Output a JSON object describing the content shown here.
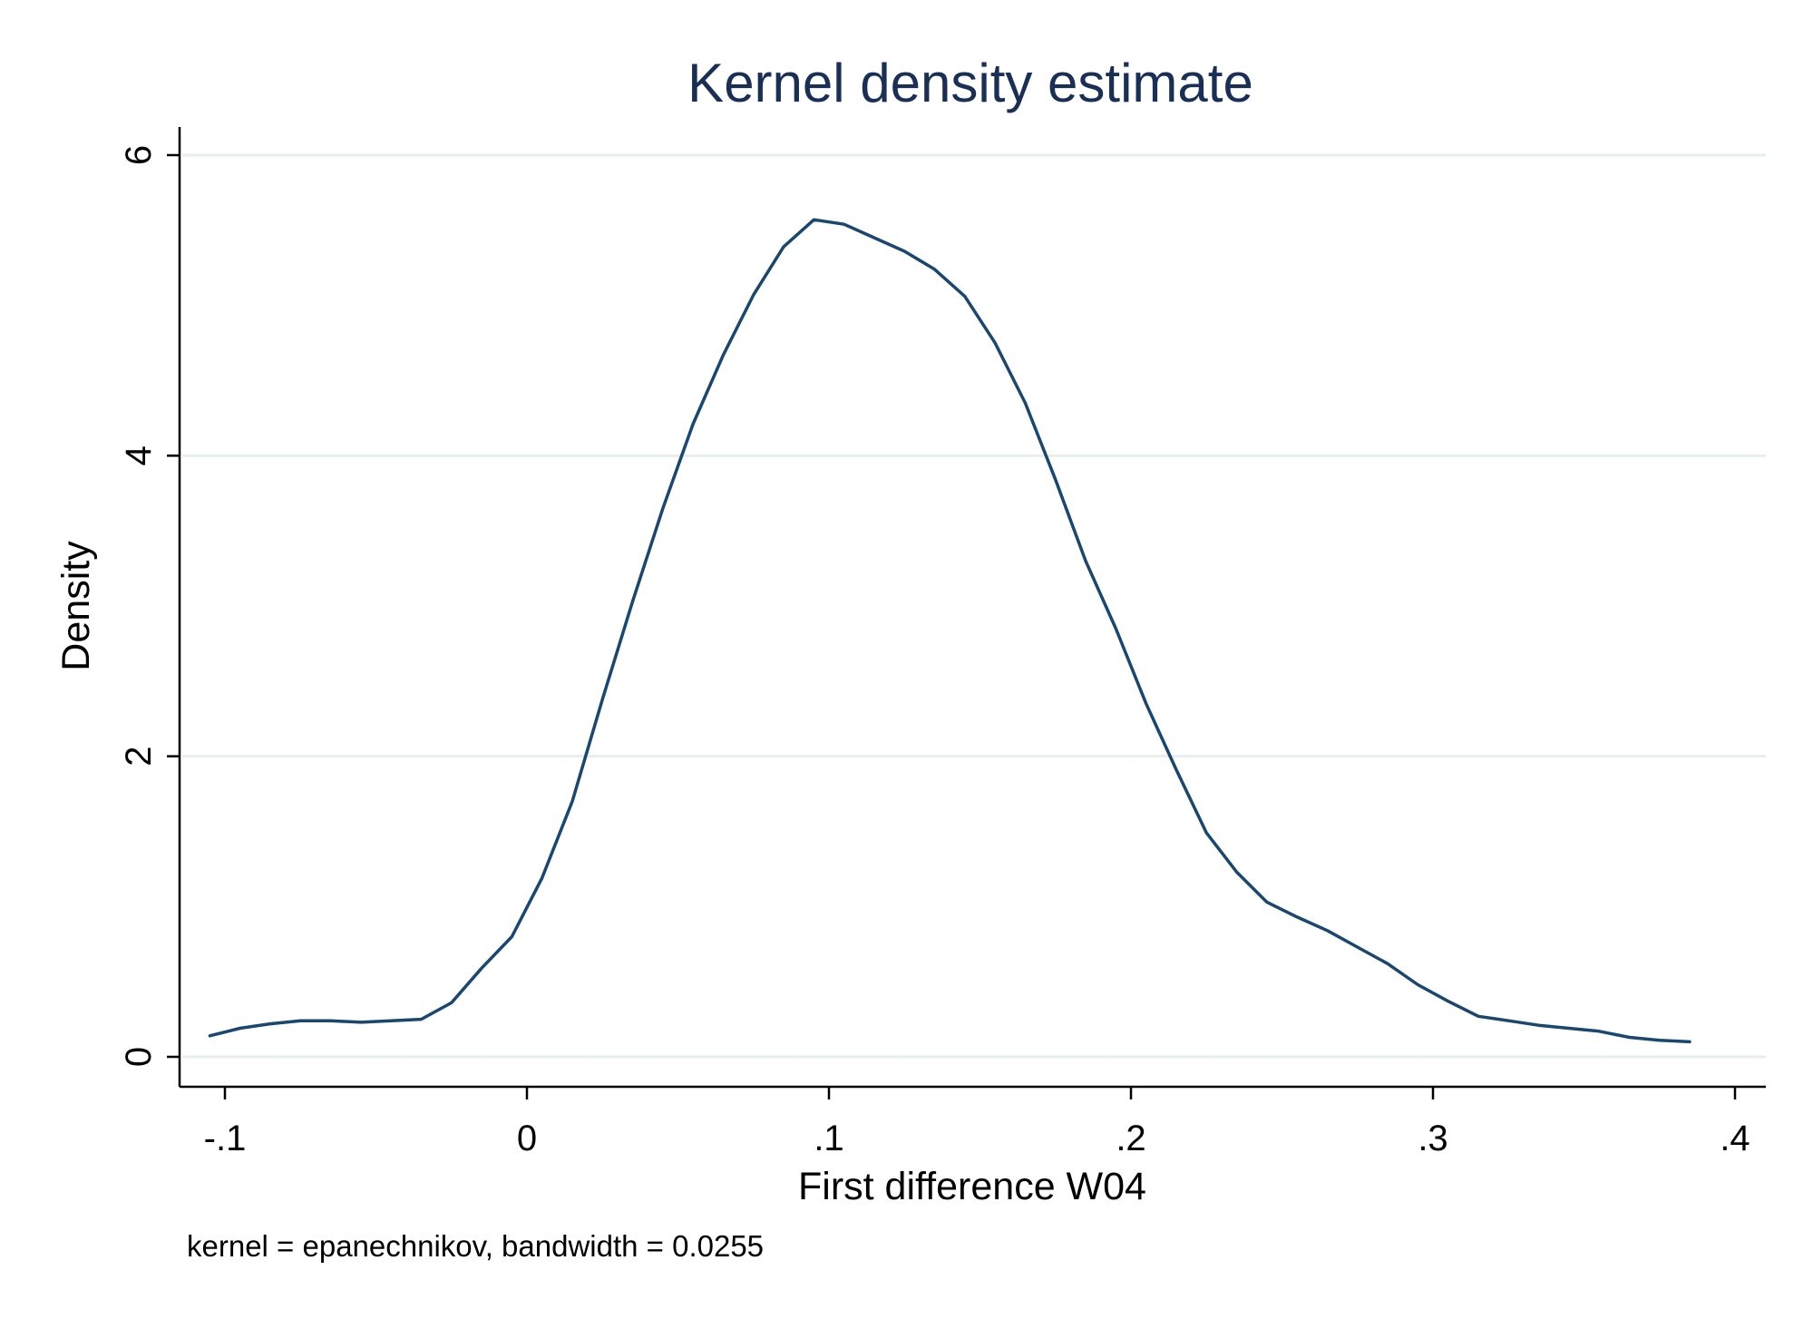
{
  "chart_data": {
    "type": "line",
    "title": "Kernel density estimate",
    "xlabel": "First difference W04",
    "ylabel": "Density",
    "note": "kernel = epanechnikov, bandwidth = 0.0255",
    "xlim": [
      -0.115,
      0.41
    ],
    "ylim": [
      -0.2,
      6.2
    ],
    "x_ticks": [
      {
        "value": -0.1,
        "label": "-.1"
      },
      {
        "value": 0.0,
        "label": "0"
      },
      {
        "value": 0.1,
        "label": ".1"
      },
      {
        "value": 0.2,
        "label": ".2"
      },
      {
        "value": 0.3,
        "label": ".3"
      },
      {
        "value": 0.4,
        "label": ".4"
      }
    ],
    "y_ticks": [
      {
        "value": 0,
        "label": "0"
      },
      {
        "value": 2,
        "label": "2"
      },
      {
        "value": 4,
        "label": "4"
      },
      {
        "value": 6,
        "label": "6"
      }
    ],
    "grid": true,
    "legend": "none",
    "colors": {
      "line": "#1a476f",
      "title": "#1a2f56",
      "grid": "#e6efee"
    },
    "series": [
      {
        "x": [
          -0.105,
          -0.095,
          -0.085,
          -0.075,
          -0.065,
          -0.055,
          -0.045,
          -0.035,
          -0.025,
          -0.015,
          -0.005,
          0.005,
          0.015,
          0.025,
          0.035,
          0.045,
          0.055,
          0.065,
          0.075,
          0.085,
          0.095,
          0.105,
          0.115,
          0.125,
          0.135,
          0.145,
          0.155,
          0.165,
          0.175,
          0.185,
          0.195,
          0.205,
          0.215,
          0.225,
          0.235,
          0.245,
          0.255,
          0.265,
          0.275,
          0.285,
          0.295,
          0.305,
          0.315,
          0.325,
          0.335,
          0.345,
          0.355,
          0.365,
          0.375,
          0.385
        ],
        "y": [
          0.14,
          0.19,
          0.22,
          0.24,
          0.24,
          0.23,
          0.24,
          0.25,
          0.36,
          0.59,
          0.8,
          1.19,
          1.7,
          2.38,
          3.03,
          3.65,
          4.21,
          4.67,
          5.07,
          5.39,
          5.57,
          5.54,
          5.45,
          5.36,
          5.24,
          5.06,
          4.75,
          4.35,
          3.84,
          3.3,
          2.85,
          2.35,
          1.91,
          1.49,
          1.23,
          1.03,
          0.93,
          0.84,
          0.73,
          0.62,
          0.48,
          0.37,
          0.27,
          0.24,
          0.21,
          0.19,
          0.17,
          0.13,
          0.11,
          0.1
        ]
      }
    ]
  }
}
